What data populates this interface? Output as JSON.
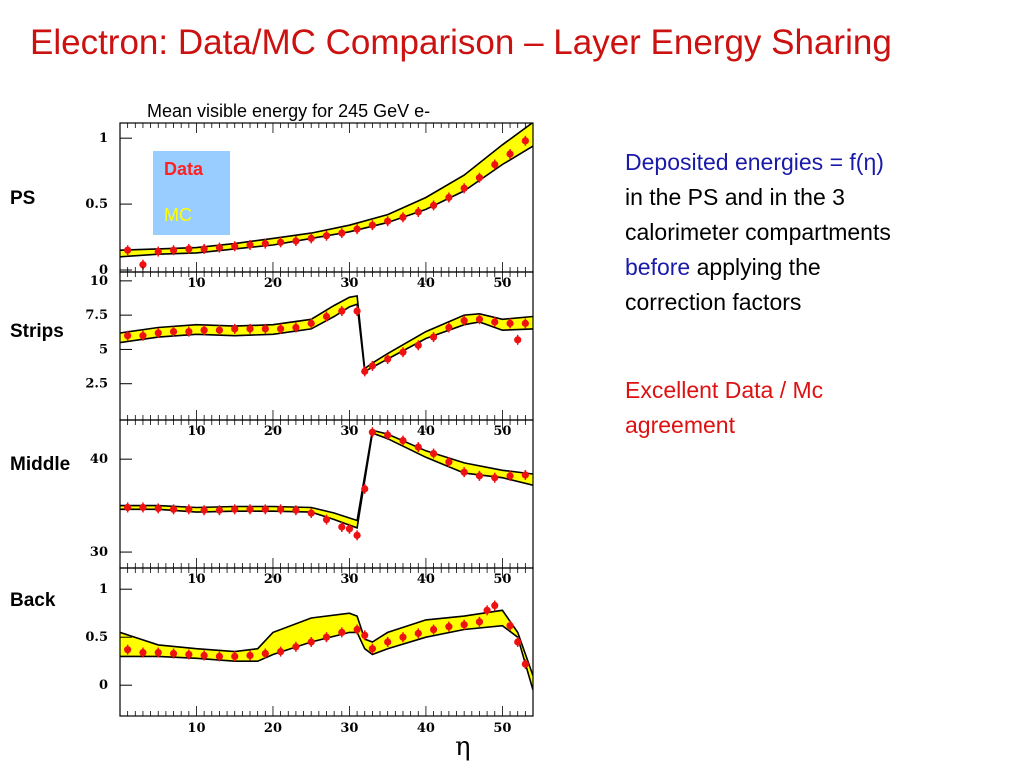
{
  "slide": {
    "title": "Electron: Data/MC Comparison – Layer Energy Sharing",
    "notes": {
      "line1_blue": "Deposited energies",
      "line1_rest": " = f(η)",
      "line2": "in the PS and in the 3",
      "line3": "calorimeter compartments",
      "line4_blue": "before",
      "line4_rest": " applying the",
      "line5": "correction factors",
      "agree1": "Excellent Data / Mc",
      "agree2": "agreement"
    }
  },
  "colors": {
    "title": "#cc1111",
    "band": "#ffff00",
    "data": "#ee1111",
    "legend_bg": "#99ccff"
  },
  "chart_data": {
    "type": "line",
    "title": "Mean visible energy for  245 GeV e-",
    "xlabel": "η",
    "xlim": [
      0,
      54
    ],
    "x_ticks": [
      10,
      20,
      30,
      40,
      50
    ],
    "legend": {
      "placement": "top-left",
      "entries": [
        "Data",
        "MC"
      ]
    },
    "series_styles": {
      "Data": "red points with error bars",
      "MC": "yellow band with black edges"
    },
    "panels": [
      {
        "name": "PS",
        "ylim": [
          0,
          1.1
        ],
        "y_ticks": [
          {
            "v": 0,
            "label": "0"
          },
          {
            "v": 0.5,
            "label": "0.5"
          },
          {
            "v": 1,
            "label": "1"
          }
        ],
        "show_x_labels": false,
        "mc_x": [
          0,
          5,
          10,
          15,
          20,
          25,
          30,
          35,
          40,
          45,
          50,
          54
        ],
        "mc_low": [
          0.1,
          0.12,
          0.13,
          0.16,
          0.19,
          0.24,
          0.29,
          0.36,
          0.46,
          0.6,
          0.8,
          0.94
        ],
        "mc_high": [
          0.15,
          0.16,
          0.17,
          0.2,
          0.24,
          0.28,
          0.34,
          0.42,
          0.55,
          0.72,
          0.95,
          1.12
        ],
        "data_x": [
          1,
          3,
          5,
          7,
          9,
          11,
          13,
          15,
          17,
          19,
          21,
          23,
          25,
          27,
          29,
          31,
          33,
          35,
          37,
          39,
          41,
          43,
          45,
          47,
          49,
          51,
          53
        ],
        "data_y": [
          0.15,
          0.04,
          0.14,
          0.15,
          0.16,
          0.16,
          0.17,
          0.18,
          0.19,
          0.2,
          0.21,
          0.22,
          0.24,
          0.26,
          0.28,
          0.31,
          0.34,
          0.37,
          0.4,
          0.44,
          0.49,
          0.55,
          0.62,
          0.7,
          0.8,
          0.88,
          0.98
        ]
      },
      {
        "name": "Strips",
        "ylim": [
          0,
          10.5
        ],
        "y_ticks": [
          {
            "v": 2.5,
            "label": "2.5"
          },
          {
            "v": 5,
            "label": "5"
          },
          {
            "v": 7.5,
            "label": "7.5"
          },
          {
            "v": 10,
            "label": "10"
          }
        ],
        "show_x_labels": true,
        "mc_x": [
          0,
          5,
          10,
          15,
          20,
          25,
          28,
          30,
          31,
          32,
          33,
          35,
          40,
          45,
          47,
          50,
          54
        ],
        "mc_low": [
          5.5,
          5.9,
          6.1,
          6.0,
          6.1,
          6.5,
          7.4,
          8.1,
          8.3,
          3.4,
          3.7,
          4.3,
          5.8,
          6.8,
          7.0,
          6.4,
          6.5
        ],
        "mc_high": [
          6.2,
          6.6,
          6.8,
          6.7,
          6.8,
          7.2,
          8.2,
          8.8,
          8.9,
          3.6,
          4.0,
          4.7,
          6.3,
          7.5,
          7.6,
          7.2,
          7.4
        ],
        "data_x": [
          1,
          3,
          5,
          7,
          9,
          11,
          13,
          15,
          17,
          19,
          21,
          23,
          25,
          27,
          29,
          31,
          32,
          33,
          35,
          37,
          39,
          41,
          43,
          45,
          47,
          49,
          51,
          52,
          53
        ],
        "data_y": [
          6.0,
          6.0,
          6.2,
          6.3,
          6.3,
          6.4,
          6.4,
          6.5,
          6.5,
          6.5,
          6.5,
          6.6,
          6.9,
          7.4,
          7.8,
          7.8,
          3.4,
          3.8,
          4.3,
          4.8,
          5.3,
          5.9,
          6.6,
          7.1,
          7.2,
          7.0,
          6.9,
          5.7,
          6.9
        ]
      },
      {
        "name": "Middle",
        "ylim": [
          28.5,
          44
        ],
        "y_ticks": [
          {
            "v": 30,
            "label": "30"
          },
          {
            "v": 40,
            "label": "40"
          }
        ],
        "show_x_labels": true,
        "mc_x": [
          0,
          5,
          10,
          15,
          20,
          25,
          28,
          31,
          33,
          35,
          40,
          45,
          50,
          54
        ],
        "mc_low": [
          34.6,
          34.6,
          34.3,
          34.4,
          34.4,
          34.3,
          33.5,
          32.6,
          42.8,
          42.2,
          40.2,
          38.5,
          38.0,
          37.2
        ],
        "mc_high": [
          35.0,
          35.0,
          34.8,
          34.9,
          34.9,
          34.8,
          34.2,
          33.4,
          43.1,
          42.7,
          40.9,
          39.6,
          38.8,
          38.4
        ],
        "data_x": [
          1,
          3,
          5,
          7,
          9,
          11,
          13,
          15,
          17,
          19,
          21,
          23,
          25,
          27,
          29,
          30,
          31,
          32,
          33,
          35,
          37,
          39,
          41,
          43,
          45,
          47,
          49,
          51,
          53
        ],
        "data_y": [
          34.8,
          34.8,
          34.7,
          34.6,
          34.6,
          34.5,
          34.5,
          34.6,
          34.6,
          34.6,
          34.6,
          34.5,
          34.2,
          33.5,
          32.7,
          32.5,
          31.8,
          36.8,
          42.9,
          42.6,
          42.0,
          41.3,
          40.6,
          39.7,
          38.6,
          38.2,
          38.0,
          38.2,
          38.3
        ]
      },
      {
        "name": "Back",
        "ylim": [
          -0.3,
          1.2
        ],
        "y_ticks": [
          {
            "v": 0,
            "label": "0"
          },
          {
            "v": 0.5,
            "label": "0.5"
          },
          {
            "v": 1,
            "label": "1"
          }
        ],
        "show_x_labels": true,
        "mc_x": [
          0,
          5,
          10,
          15,
          18,
          20,
          25,
          30,
          31,
          32,
          33,
          35,
          40,
          45,
          50,
          52,
          54
        ],
        "mc_low": [
          0.3,
          0.3,
          0.28,
          0.25,
          0.25,
          0.32,
          0.45,
          0.55,
          0.55,
          0.38,
          0.32,
          0.38,
          0.5,
          0.58,
          0.62,
          0.5,
          -0.05
        ],
        "mc_high": [
          0.55,
          0.42,
          0.38,
          0.35,
          0.38,
          0.55,
          0.7,
          0.75,
          0.72,
          0.48,
          0.45,
          0.55,
          0.68,
          0.72,
          0.78,
          0.55,
          0.1
        ],
        "data_x": [
          1,
          3,
          5,
          7,
          9,
          11,
          13,
          15,
          17,
          19,
          21,
          23,
          25,
          27,
          29,
          31,
          32,
          33,
          35,
          37,
          39,
          41,
          43,
          45,
          47,
          48,
          49,
          51,
          52,
          53
        ],
        "data_y": [
          0.37,
          0.34,
          0.34,
          0.33,
          0.32,
          0.31,
          0.3,
          0.3,
          0.31,
          0.33,
          0.35,
          0.4,
          0.45,
          0.5,
          0.55,
          0.58,
          0.52,
          0.38,
          0.45,
          0.5,
          0.54,
          0.58,
          0.61,
          0.63,
          0.66,
          0.78,
          0.83,
          0.62,
          0.45,
          0.22
        ]
      }
    ]
  }
}
